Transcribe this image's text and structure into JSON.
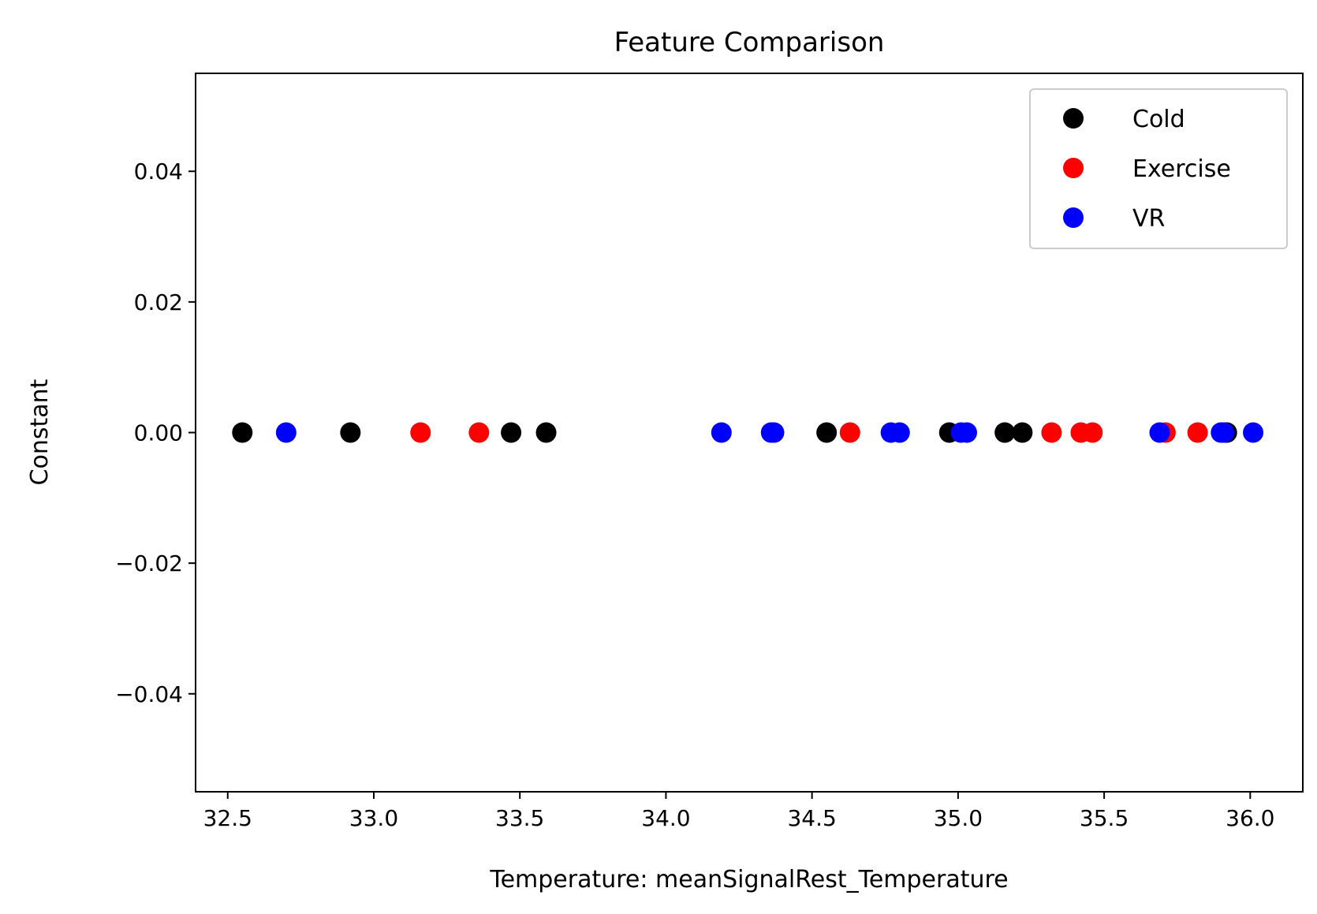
{
  "chart_data": {
    "type": "scatter",
    "title": "Feature Comparison",
    "xlabel": "Temperature: meanSignalRest_Temperature",
    "ylabel": "Constant",
    "xlim": [
      32.39,
      36.18
    ],
    "ylim": [
      -0.055,
      0.055
    ],
    "xticks": [
      32.5,
      33.0,
      33.5,
      34.0,
      34.5,
      35.0,
      35.5,
      36.0
    ],
    "xtick_labels": [
      "32.5",
      "33.0",
      "33.5",
      "34.0",
      "34.5",
      "35.0",
      "35.5",
      "36.0"
    ],
    "yticks": [
      0.04,
      0.02,
      0.0,
      -0.02,
      -0.04
    ],
    "ytick_labels": [
      "0.04",
      "0.02",
      "0.00",
      "−0.02",
      "−0.04"
    ],
    "grid": false,
    "legend_position": "top-right",
    "series": [
      {
        "name": "Cold",
        "color": "#000000",
        "x": [
          32.55,
          32.92,
          33.47,
          33.59,
          34.55,
          34.97,
          35.16,
          35.22,
          35.92
        ],
        "y": [
          0,
          0,
          0,
          0,
          0,
          0,
          0,
          0,
          0
        ]
      },
      {
        "name": "Exercise",
        "color": "#ff0000",
        "x": [
          33.16,
          33.36,
          34.63,
          35.32,
          35.42,
          35.46,
          35.71,
          35.82
        ],
        "y": [
          0,
          0,
          0,
          0,
          0,
          0,
          0,
          0
        ]
      },
      {
        "name": "VR",
        "color": "#0000ff",
        "x": [
          32.7,
          34.19,
          34.36,
          34.37,
          34.77,
          34.8,
          35.01,
          35.03,
          35.69,
          35.9,
          35.91,
          36.01
        ],
        "y": [
          0,
          0,
          0,
          0,
          0,
          0,
          0,
          0,
          0,
          0,
          0,
          0
        ]
      }
    ]
  }
}
